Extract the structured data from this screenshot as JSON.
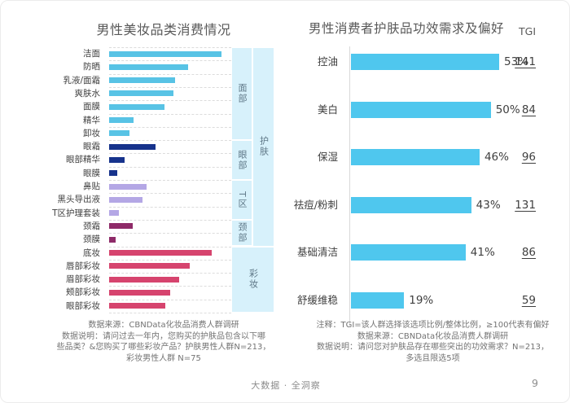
{
  "left_chart": {
    "title": "男性美妆品类消费情况",
    "notes": [
      "数据来源：CBNData化妆品消费人群调研",
      "数据说明：请问过去一年内，您购买的护肤品包含以下哪",
      "些品类？&您购买了哪些彩妆产品？护肤男性人群N=213，",
      "彩妆男性人群 N=75"
    ]
  },
  "right_chart": {
    "title": "男性消费者护肤品功效需求及偏好",
    "tgi_header": "TGI",
    "notes": [
      "注释：TGI=该人群选择该选项比例/整体比例，≥100代表有偏好",
      "数据来源：CBNData化妆品消费人群调研",
      "数据说明：请问您对护肤品存在哪些突出的功效需求？N=213，",
      "多选且限选5项"
    ]
  },
  "footer": {
    "brand": "大数据 · 全洞察",
    "page_number": "9"
  },
  "colors": {
    "skyblue": "#58c3e5",
    "navy": "#17338c",
    "lavender": "#b4a7e5",
    "plum": "#8e2a68",
    "raspberry": "#d6446e",
    "cyan": "#4fc7ee",
    "band_bg": "#d7f1fb",
    "band_text": "#5e7787"
  },
  "chart_data": [
    {
      "type": "bar",
      "orientation": "horizontal",
      "title": "男性美妆品类消费情况",
      "categories": [
        "洁面",
        "防晒",
        "乳液/面霜",
        "爽肤水",
        "面膜",
        "精华",
        "卸妆",
        "眼霜",
        "眼部精华",
        "眼膜",
        "鼻贴",
        "黑头导出液",
        "T区护理套装",
        "颈霜",
        "颈膜",
        "底妆",
        "唇部彩妆",
        "眉部彩妆",
        "颊部彩妆",
        "眼部彩妆"
      ],
      "values_pct_of_longest": [
        100,
        70,
        59,
        57,
        49,
        22,
        18,
        41,
        14,
        7,
        33,
        30,
        9,
        21,
        6,
        91,
        72,
        62,
        54,
        50
      ],
      "bar_colors": [
        "#58c3e5",
        "#58c3e5",
        "#58c3e5",
        "#58c3e5",
        "#58c3e5",
        "#58c3e5",
        "#58c3e5",
        "#17338c",
        "#17338c",
        "#17338c",
        "#b4a7e5",
        "#b4a7e5",
        "#b4a7e5",
        "#8e2a68",
        "#8e2a68",
        "#d6446e",
        "#d6446e",
        "#d6446e",
        "#d6446e",
        "#d6446e"
      ],
      "grid": "dashed-row-separators",
      "value_labels": false,
      "groups": [
        {
          "label": "面部",
          "from": 0,
          "to": 6,
          "col": "a"
        },
        {
          "label": "眼部",
          "from": 7,
          "to": 9,
          "col": "a"
        },
        {
          "label": "T区",
          "from": 10,
          "to": 12,
          "col": "a"
        },
        {
          "label": "颈部",
          "from": 13,
          "to": 14,
          "col": "a"
        },
        {
          "label": "护肤",
          "from": 0,
          "to": 14,
          "col": "b"
        },
        {
          "label": "彩妆",
          "from": 15,
          "to": 19,
          "col": "ab"
        }
      ]
    },
    {
      "type": "bar",
      "orientation": "horizontal",
      "title": "男性消费者护肤品功效需求及偏好",
      "categories": [
        "控油",
        "美白",
        "保湿",
        "祛痘/粉刺",
        "基础清洁",
        "舒缓维稳"
      ],
      "values_pct": [
        53,
        50,
        46,
        43,
        41,
        19
      ],
      "tgi": [
        141,
        84,
        96,
        131,
        86,
        59
      ],
      "value_suffix": "%",
      "legend": "none",
      "grid": "y-axis-line-only"
    }
  ]
}
